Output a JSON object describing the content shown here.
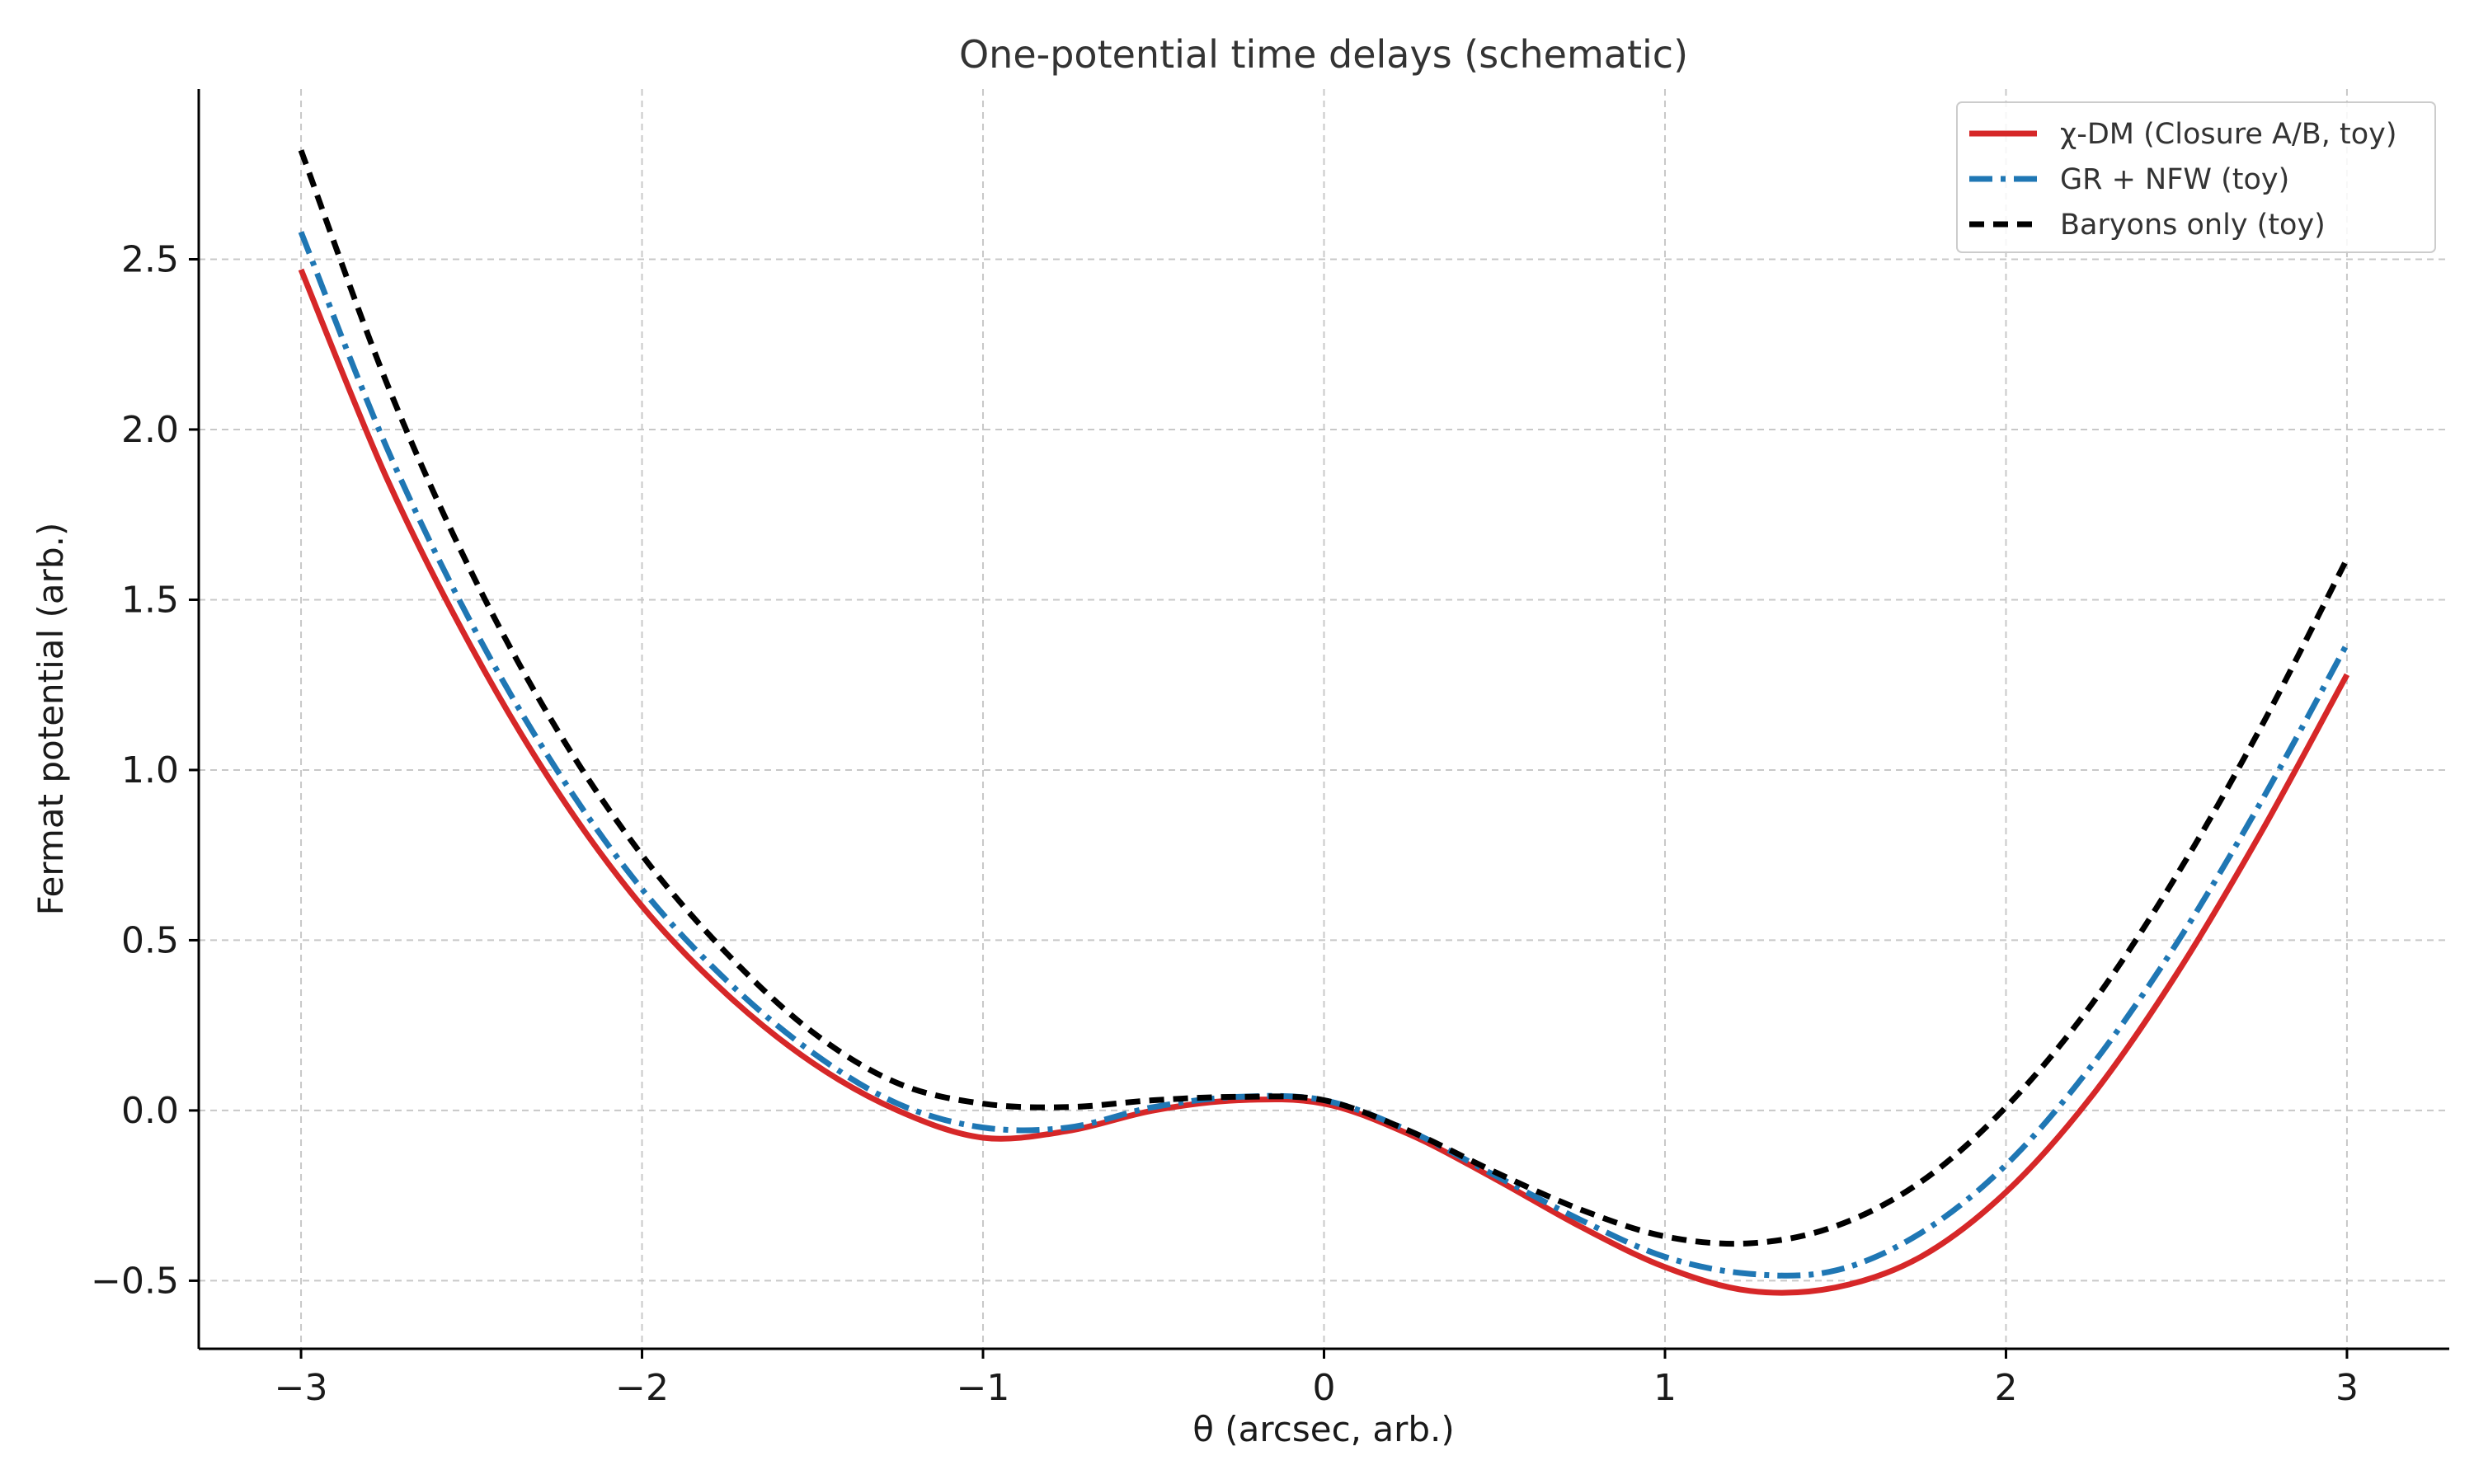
{
  "chart_data": {
    "type": "line",
    "title": "One-potential time delays (schematic)",
    "xlabel": "θ (arcsec, arb.)",
    "ylabel": "Fermat potential (arb.)",
    "xlim": [
      -3.3,
      3.3
    ],
    "ylim": [
      -0.7,
      3.0
    ],
    "xticks": [
      -3,
      -2,
      -1,
      0,
      1,
      2,
      3
    ],
    "xtick_labels": [
      "−3",
      "−2",
      "−1",
      "0",
      "1",
      "2",
      "3"
    ],
    "yticks": [
      -0.5,
      0.0,
      0.5,
      1.0,
      1.5,
      2.0,
      2.5
    ],
    "ytick_labels": [
      "−0.5",
      "0.0",
      "0.5",
      "1.0",
      "1.5",
      "2.0",
      "2.5"
    ],
    "grid": true,
    "legend_position": "top-right",
    "x": [
      -3.0,
      -2.75,
      -2.5,
      -2.25,
      -2.0,
      -1.75,
      -1.5,
      -1.25,
      -1.0,
      -0.75,
      -0.5,
      -0.25,
      0.0,
      0.25,
      0.5,
      0.75,
      1.0,
      1.25,
      1.5,
      1.75,
      2.0,
      2.25,
      2.5,
      2.75,
      3.0
    ],
    "series": [
      {
        "name": "χ-DM (Closure A/B, toy)",
        "color": "#d62728",
        "dash": "solid",
        "values": [
          2.47,
          1.86,
          1.36,
          0.94,
          0.6,
          0.34,
          0.14,
          0.0,
          -0.08,
          -0.06,
          0.0,
          0.03,
          0.02,
          -0.07,
          -0.2,
          -0.34,
          -0.46,
          -0.53,
          -0.52,
          -0.43,
          -0.24,
          0.04,
          0.4,
          0.82,
          1.28
        ]
      },
      {
        "name": "GR + NFW (toy)",
        "color": "#1f77b4",
        "dash": "dashdot",
        "values": [
          2.58,
          1.95,
          1.43,
          1.0,
          0.65,
          0.38,
          0.17,
          0.02,
          -0.05,
          -0.05,
          0.01,
          0.04,
          0.03,
          -0.06,
          -0.19,
          -0.32,
          -0.43,
          -0.48,
          -0.47,
          -0.36,
          -0.16,
          0.13,
          0.49,
          0.91,
          1.37
        ]
      },
      {
        "name": "Baryons only (toy)",
        "color": "#000000",
        "dash": "dashed",
        "values": [
          2.82,
          2.14,
          1.58,
          1.12,
          0.75,
          0.46,
          0.23,
          0.08,
          0.02,
          0.01,
          0.03,
          0.04,
          0.03,
          -0.06,
          -0.18,
          -0.29,
          -0.37,
          -0.39,
          -0.34,
          -0.21,
          0.01,
          0.31,
          0.69,
          1.13,
          1.62
        ]
      }
    ]
  }
}
